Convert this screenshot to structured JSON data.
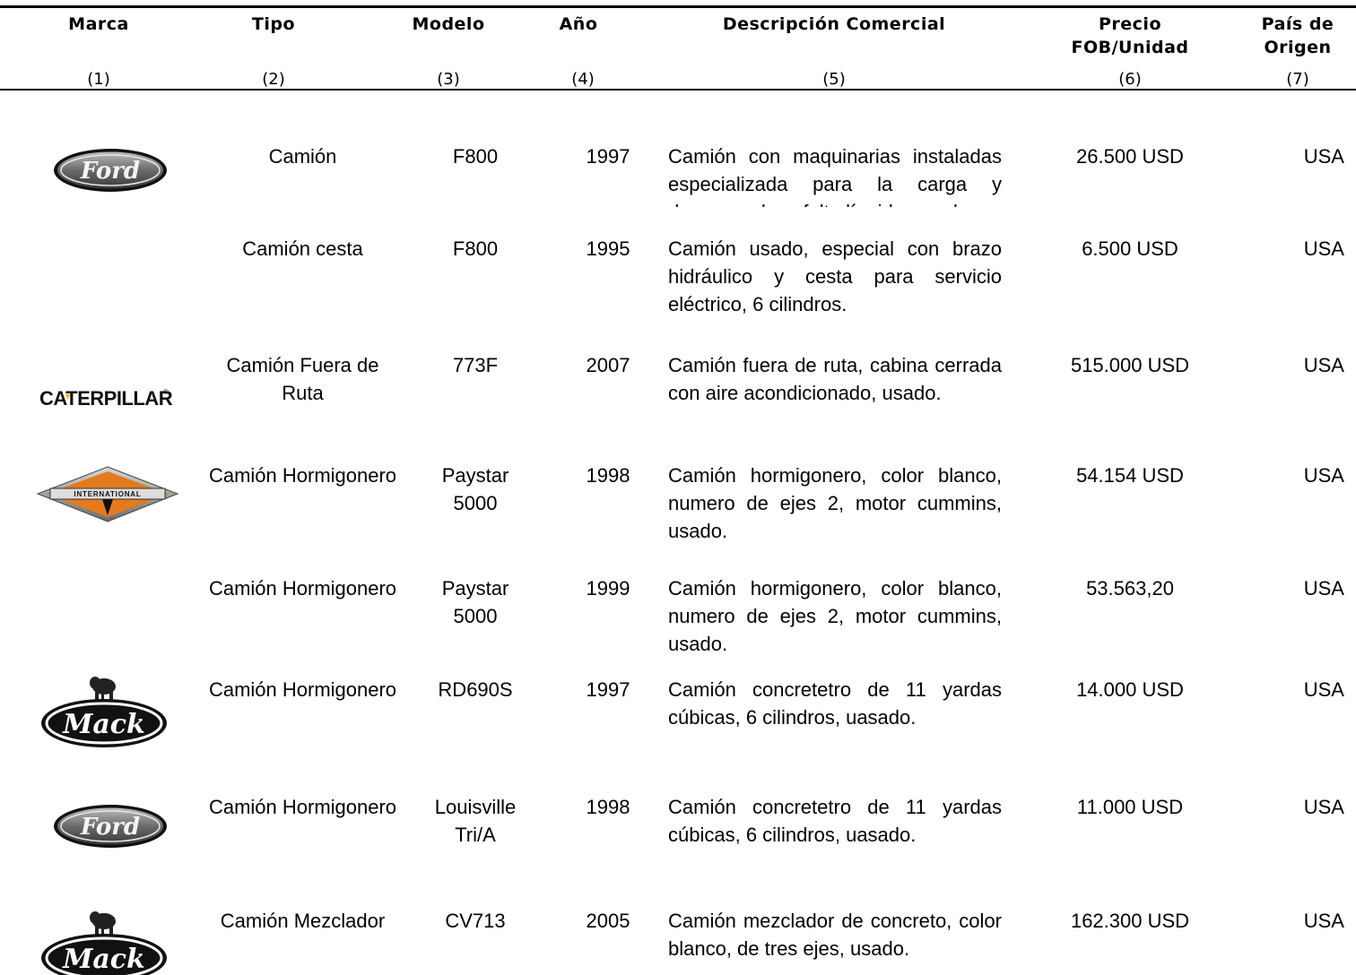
{
  "headers": [
    {
      "title": "Marca",
      "num": "(1)"
    },
    {
      "title": "Tipo",
      "num": "(2)"
    },
    {
      "title": "Modelo",
      "num": "(3)"
    },
    {
      "title": "Año",
      "num": "(4)"
    },
    {
      "title": "Descripción Comercial",
      "num": "(5)"
    },
    {
      "title": "Precio FOB/Unidad",
      "num": "(6)"
    },
    {
      "title": "País de Origen",
      "num": "(7)"
    }
  ],
  "logos": {
    "ford": "Ford",
    "caterpillar": "CATERPILLAR",
    "international": "INTERNATIONAL",
    "mack": "Mack"
  },
  "rows": [
    {
      "marca": "ford",
      "tipo": "Camión",
      "modelo": "F800",
      "anio": "1997",
      "descripcion": "Camión con maquinarias instaladas especializada para la carga y descarga de asfalto líquido, usado.",
      "precio": "26.500 USD",
      "pais": "USA"
    },
    {
      "marca": "",
      "tipo": "Camión cesta",
      "modelo": "F800",
      "anio": "1995",
      "descripcion": "Camión usado, especial con brazo hidráulico y cesta para servicio eléctrico, 6 cilindros.",
      "precio": "6.500 USD",
      "pais": "USA"
    },
    {
      "marca": "caterpillar",
      "tipo": "Camión Fuera de Ruta",
      "modelo": "773F",
      "anio": "2007",
      "descripcion": "Camión fuera de ruta, cabina cerrada con aire acondicionado, usado.",
      "precio": "515.000 USD",
      "pais": "USA"
    },
    {
      "marca": "international",
      "tipo": "Camión Hormigonero",
      "modelo": "Paystar 5000",
      "anio": "1998",
      "descripcion": "Camión hormigonero, color blanco, numero de ejes 2, motor cummins, usado.",
      "precio": "54.154 USD",
      "pais": "USA"
    },
    {
      "marca": "",
      "tipo": "Camión Hormigonero",
      "modelo": "Paystar 5000",
      "anio": "1999",
      "descripcion": "Camión hormigonero, color blanco, numero de ejes 2, motor cummins, usado.",
      "precio": "53.563,20",
      "pais": "USA"
    },
    {
      "marca": "mack",
      "tipo": "Camión Hormigonero",
      "modelo": "RD690S",
      "anio": "1997",
      "descripcion": "Camión concretetro de 11 yardas cúbicas, 6 cilindros, uasado.",
      "precio": "14.000 USD",
      "pais": "USA"
    },
    {
      "marca": "ford",
      "tipo": "Camión Hormigonero",
      "modelo": "Louisville Tri/A",
      "anio": "1998",
      "descripcion": "Camión concretetro de 11 yardas cúbicas, 6 cilindros, uasado.",
      "precio": "11.000 USD",
      "pais": "USA"
    },
    {
      "marca": "mack",
      "tipo": "Camión Mezclador",
      "modelo": "CV713",
      "anio": "2005",
      "descripcion": "Camión mezclador de concreto, color blanco, de tres ejes, usado.",
      "precio": "162.300 USD",
      "pais": "USA"
    }
  ]
}
